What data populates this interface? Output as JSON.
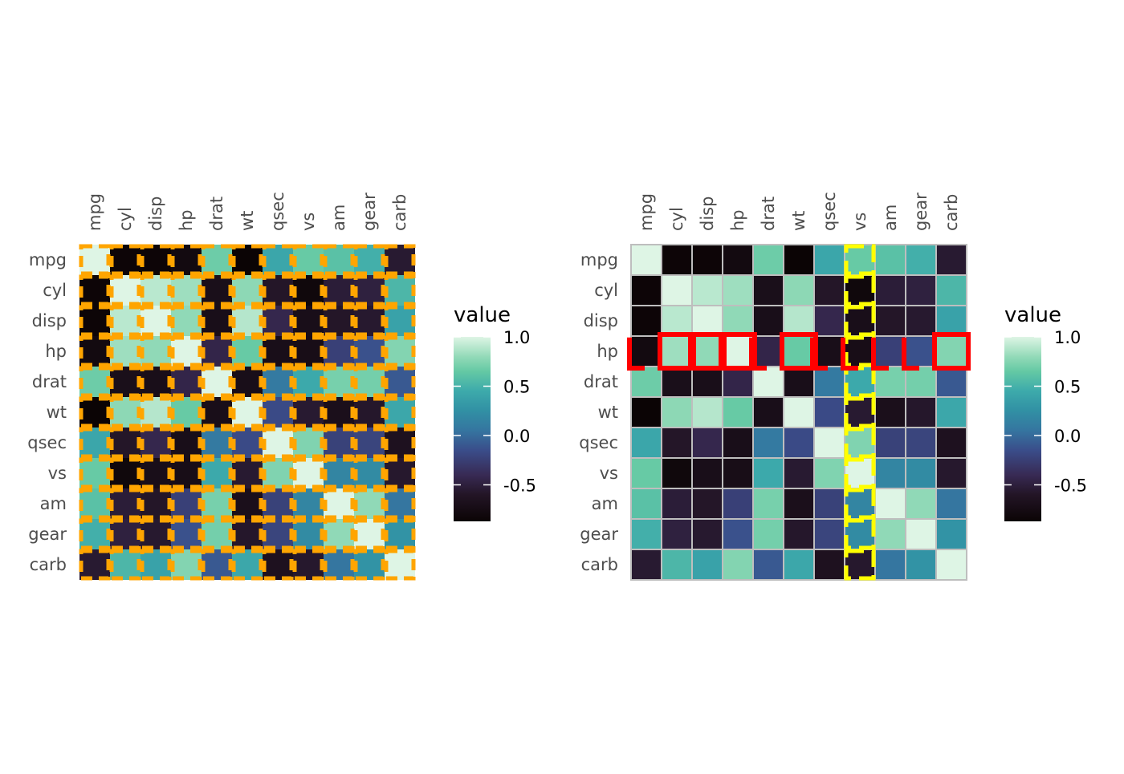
{
  "chart_data": [
    {
      "type": "heatmap",
      "panel": "left",
      "highlight": "all cells outlined with dashed orange border",
      "highlight_color": "#FFA500",
      "variables": [
        "mpg",
        "cyl",
        "disp",
        "hp",
        "drat",
        "wt",
        "qsec",
        "vs",
        "am",
        "gear",
        "carb"
      ],
      "values": [
        [
          1.0,
          -0.85,
          -0.85,
          -0.78,
          0.68,
          -0.87,
          0.42,
          0.66,
          0.6,
          0.48,
          -0.55
        ],
        [
          -0.85,
          1.0,
          0.9,
          0.83,
          -0.7,
          0.78,
          -0.59,
          -0.81,
          -0.52,
          -0.49,
          0.53
        ],
        [
          -0.85,
          0.9,
          1.0,
          0.79,
          -0.71,
          0.89,
          -0.43,
          -0.71,
          -0.59,
          -0.56,
          0.39
        ],
        [
          -0.78,
          0.83,
          0.79,
          1.0,
          -0.45,
          0.66,
          -0.71,
          -0.72,
          -0.24,
          -0.13,
          0.75
        ],
        [
          0.68,
          -0.7,
          -0.71,
          -0.45,
          1.0,
          -0.71,
          0.09,
          0.44,
          0.71,
          0.7,
          -0.09
        ],
        [
          -0.87,
          0.78,
          0.89,
          0.66,
          -0.71,
          1.0,
          -0.17,
          -0.55,
          -0.69,
          -0.58,
          0.43
        ],
        [
          0.42,
          -0.59,
          -0.43,
          -0.71,
          0.09,
          -0.17,
          1.0,
          0.74,
          -0.23,
          -0.21,
          -0.66
        ],
        [
          0.66,
          -0.81,
          -0.71,
          -0.72,
          0.44,
          -0.55,
          0.74,
          1.0,
          0.17,
          0.21,
          -0.57
        ],
        [
          0.6,
          -0.52,
          -0.59,
          -0.24,
          0.71,
          -0.69,
          -0.23,
          0.17,
          1.0,
          0.79,
          0.06
        ],
        [
          0.48,
          -0.49,
          -0.56,
          -0.13,
          0.7,
          -0.58,
          -0.21,
          0.21,
          0.79,
          1.0,
          0.27
        ],
        [
          -0.55,
          0.53,
          0.39,
          0.75,
          -0.09,
          0.43,
          -0.66,
          -0.57,
          0.06,
          0.27,
          1.0
        ]
      ],
      "legend": {
        "title": "value",
        "ticks": [
          "1.0",
          "0.5",
          "0.0",
          "-0.5"
        ],
        "tick_values": [
          1.0,
          0.5,
          0.0,
          -0.5
        ],
        "range": [
          -0.87,
          1.0
        ]
      }
    },
    {
      "type": "heatmap",
      "panel": "right",
      "highlight_row": "hp",
      "highlight_row_color": "#FF0000",
      "highlight_row_cells": "cells in row hp with value greater than 0",
      "highlight_column": "vs",
      "highlight_column_color": "#FFFF00",
      "cell_border_color": "#BEBEBE",
      "variables": [
        "mpg",
        "cyl",
        "disp",
        "hp",
        "drat",
        "wt",
        "qsec",
        "vs",
        "am",
        "gear",
        "carb"
      ],
      "values": [
        [
          1.0,
          -0.85,
          -0.85,
          -0.78,
          0.68,
          -0.87,
          0.42,
          0.66,
          0.6,
          0.48,
          -0.55
        ],
        [
          -0.85,
          1.0,
          0.9,
          0.83,
          -0.7,
          0.78,
          -0.59,
          -0.81,
          -0.52,
          -0.49,
          0.53
        ],
        [
          -0.85,
          0.9,
          1.0,
          0.79,
          -0.71,
          0.89,
          -0.43,
          -0.71,
          -0.59,
          -0.56,
          0.39
        ],
        [
          -0.78,
          0.83,
          0.79,
          1.0,
          -0.45,
          0.66,
          -0.71,
          -0.72,
          -0.24,
          -0.13,
          0.75
        ],
        [
          0.68,
          -0.7,
          -0.71,
          -0.45,
          1.0,
          -0.71,
          0.09,
          0.44,
          0.71,
          0.7,
          -0.09
        ],
        [
          -0.87,
          0.78,
          0.89,
          0.66,
          -0.71,
          1.0,
          -0.17,
          -0.55,
          -0.69,
          -0.58,
          0.43
        ],
        [
          0.42,
          -0.59,
          -0.43,
          -0.71,
          0.09,
          -0.17,
          1.0,
          0.74,
          -0.23,
          -0.21,
          -0.66
        ],
        [
          0.66,
          -0.81,
          -0.71,
          -0.72,
          0.44,
          -0.55,
          0.74,
          1.0,
          0.17,
          0.21,
          -0.57
        ],
        [
          0.6,
          -0.52,
          -0.59,
          -0.24,
          0.71,
          -0.69,
          -0.23,
          0.17,
          1.0,
          0.79,
          0.06
        ],
        [
          0.48,
          -0.49,
          -0.56,
          -0.13,
          0.7,
          -0.58,
          -0.21,
          0.21,
          0.79,
          1.0,
          0.27
        ],
        [
          -0.55,
          0.53,
          0.39,
          0.75,
          -0.09,
          0.43,
          -0.66,
          -0.57,
          0.06,
          0.27,
          1.0
        ]
      ],
      "legend": {
        "title": "value",
        "ticks": [
          "1.0",
          "0.5",
          "0.0",
          "-0.5"
        ],
        "tick_values": [
          1.0,
          0.5,
          0.0,
          -0.5
        ],
        "range": [
          -0.87,
          1.0
        ]
      }
    }
  ],
  "palette": {
    "stops": [
      {
        "v": -0.87,
        "color": "#0B0405"
      },
      {
        "v": -0.6,
        "color": "#231526"
      },
      {
        "v": -0.4,
        "color": "#382A54"
      },
      {
        "v": -0.15,
        "color": "#3A4D8A"
      },
      {
        "v": 0.05,
        "color": "#3575A0"
      },
      {
        "v": 0.25,
        "color": "#3190A4"
      },
      {
        "v": 0.45,
        "color": "#3DAAAB"
      },
      {
        "v": 0.65,
        "color": "#64C9A4"
      },
      {
        "v": 0.8,
        "color": "#93DAB8"
      },
      {
        "v": 1.0,
        "color": "#DEF5E5"
      }
    ]
  }
}
